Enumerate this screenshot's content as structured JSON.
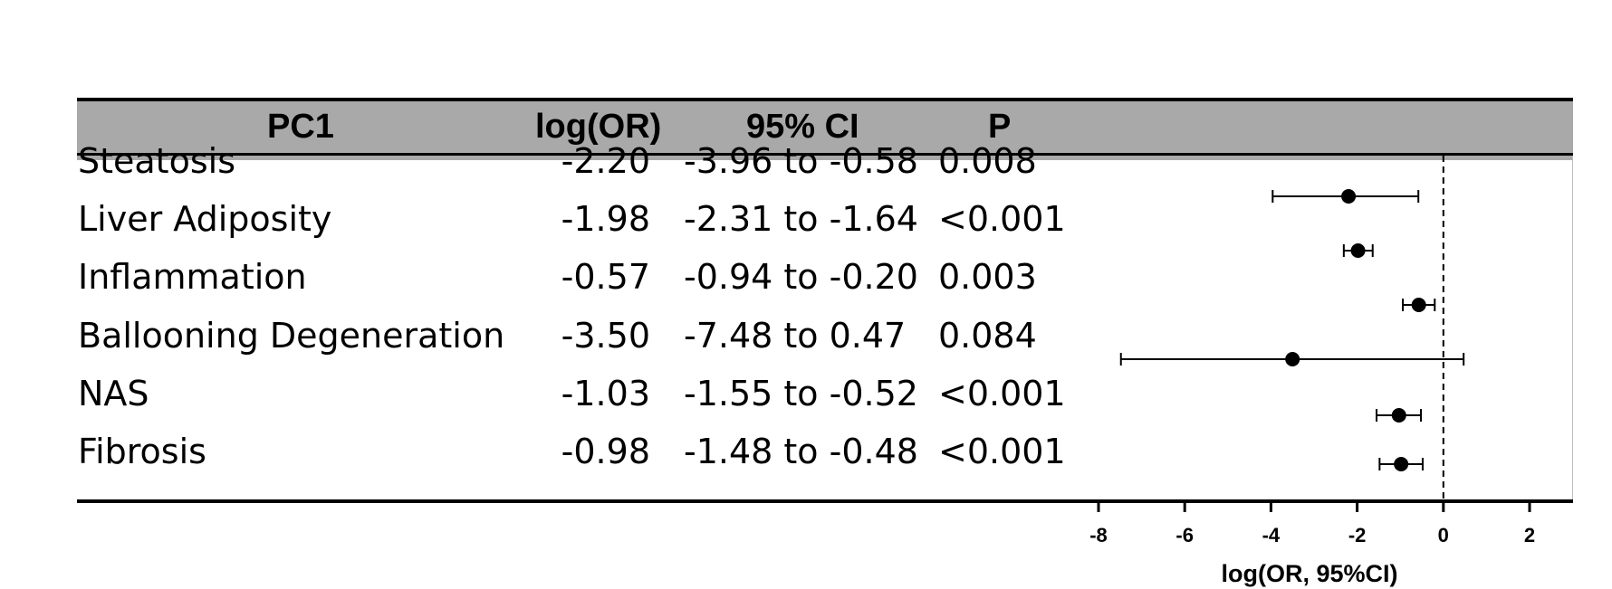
{
  "table": {
    "headers": {
      "label": "PC1",
      "log_or": "log(OR)",
      "ci": "95% CI",
      "p": "P"
    },
    "rows": [
      {
        "label": "Steatosis",
        "log_or": "-2.20",
        "ci": "-3.96 to -0.58",
        "p": "0.008"
      },
      {
        "label": "Liver Adiposity",
        "log_or": "-1.98",
        "ci": "-2.31 to -1.64",
        "p": "<0.001"
      },
      {
        "label": "Inflammation",
        "log_or": "-0.57",
        "ci": "-0.94 to -0.20",
        "p": "0.003"
      },
      {
        "label": "Ballooning Degeneration",
        "log_or": "-3.50",
        "ci": "-7.48 to 0.47",
        "p": "0.084"
      },
      {
        "label": "NAS",
        "log_or": "-1.03",
        "ci": "-1.55 to -0.52",
        "p": "<0.001"
      },
      {
        "label": "Fibrosis",
        "log_or": "-0.98",
        "ci": "-1.48 to -0.48",
        "p": "<0.001"
      }
    ]
  },
  "chart_data": {
    "type": "scatter",
    "subtype": "forest-plot",
    "categories": [
      "Steatosis",
      "Liver Adiposity",
      "Inflammation",
      "Ballooning Degeneration",
      "NAS",
      "Fibrosis"
    ],
    "values": [
      -2.2,
      -1.98,
      -0.57,
      -3.5,
      -1.03,
      -0.98
    ],
    "ci_lower": [
      -3.96,
      -2.31,
      -0.94,
      -7.48,
      -1.55,
      -1.48
    ],
    "ci_upper": [
      -0.58,
      -1.64,
      -0.2,
      0.47,
      -0.52,
      -0.48
    ],
    "xlabel": "log(OR, 95%CI)",
    "xlim": [
      -8,
      2
    ],
    "xticks": [
      -8,
      -6,
      -4,
      -2,
      0,
      2
    ],
    "xtick_labels": [
      "-8",
      "-6",
      "-4",
      "-2",
      "0",
      "2"
    ],
    "reference_line": 0,
    "reference_line_style": "dashed",
    "marker_color": "#000000"
  }
}
